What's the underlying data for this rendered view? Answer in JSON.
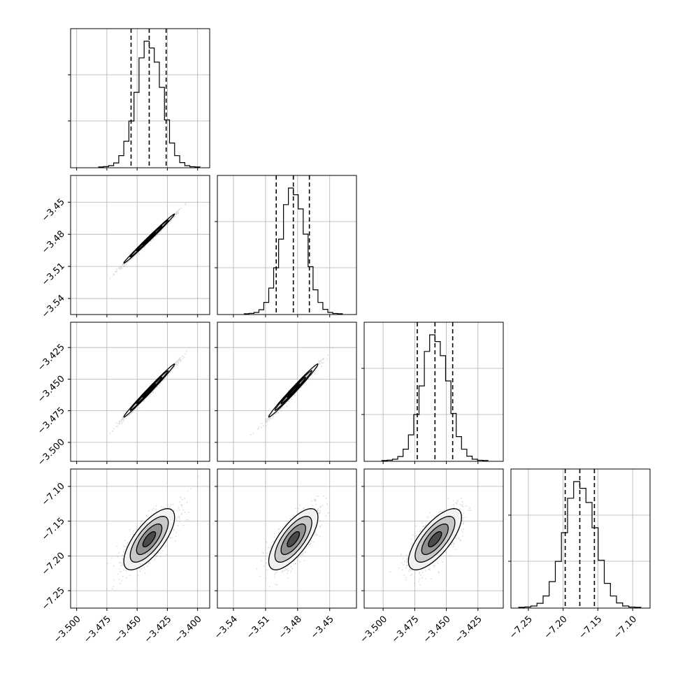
{
  "chart_data": {
    "type": "corner",
    "params": [
      {
        "range": [
          -3.505,
          -3.39
        ],
        "ticks": [
          -3.5,
          -3.475,
          -3.45,
          -3.425,
          -3.4
        ],
        "tick_labels": [
          "−3.500",
          "−3.475",
          "−3.450",
          "−3.425",
          "−3.400"
        ],
        "mean": -3.44,
        "quantiles": [
          -3.455,
          -3.44,
          -3.426
        ]
      },
      {
        "range": [
          -3.555,
          -3.425
        ],
        "ticks": [
          -3.54,
          -3.51,
          -3.48,
          -3.45
        ],
        "tick_labels": [
          "−3.54",
          "−3.51",
          "−3.48",
          "−3.45"
        ],
        "mean": -3.484,
        "quantiles": [
          -3.5,
          -3.484,
          -3.469
        ]
      },
      {
        "range": [
          -3.515,
          -3.405
        ],
        "ticks": [
          -3.5,
          -3.475,
          -3.45,
          -3.425
        ],
        "tick_labels": [
          "−3.500",
          "−3.475",
          "−3.450",
          "−3.425"
        ],
        "mean": -3.459,
        "quantiles": [
          -3.473,
          -3.459,
          -3.445
        ]
      },
      {
        "range": [
          -7.275,
          -7.075
        ],
        "ticks": [
          -7.25,
          -7.2,
          -7.15,
          -7.1
        ],
        "tick_labels": [
          "−7.25",
          "−7.20",
          "−7.15",
          "−7.10"
        ],
        "mean": -7.176,
        "quantiles": [
          -7.197,
          -7.176,
          -7.155
        ]
      }
    ],
    "histogram_bins": 20,
    "correlations": {
      "1-0": 0.995,
      "2-0": 0.993,
      "2-1": 0.99,
      "3-0": 0.72,
      "3-1": 0.72,
      "3-2": 0.72
    },
    "sigmas": [
      0.0105,
      0.0115,
      0.0105,
      0.022
    ],
    "grid": true,
    "legend": "none",
    "colors": {
      "line": "#000000",
      "points": "#9a9a9a",
      "grid": "#b0b0b0",
      "fill": "#555555"
    }
  }
}
